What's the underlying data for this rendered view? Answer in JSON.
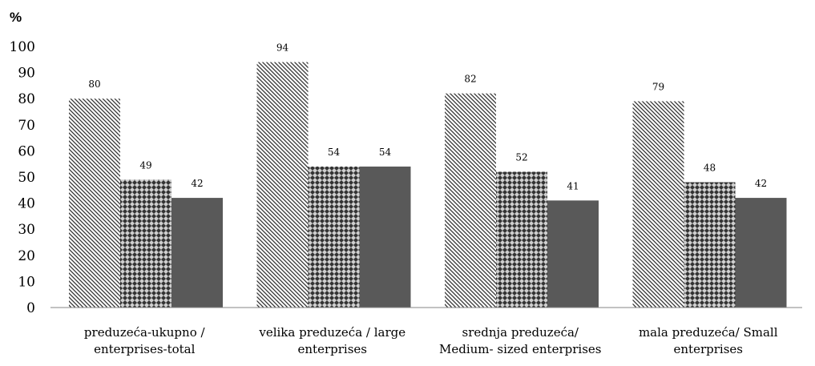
{
  "chart_data": {
    "type": "bar",
    "unit_label": "%",
    "title": "",
    "xlabel": "",
    "ylabel": "",
    "ylim": [
      0,
      100
    ],
    "yticks": [
      0,
      10,
      20,
      30,
      40,
      50,
      60,
      70,
      80,
      90,
      100
    ],
    "grid": false,
    "legend": "none",
    "categories": [
      [
        "preduzeća-ukupno /",
        "enterprises-total"
      ],
      [
        "velika preduzeća  / large",
        "enterprises"
      ],
      [
        "srednja  preduzeća/",
        "Medium- sized enterprises"
      ],
      [
        "mala preduzeća/  Small",
        "enterprises"
      ]
    ],
    "series": [
      {
        "pattern": "diagonal-stripes",
        "values": [
          80,
          94,
          82,
          79
        ]
      },
      {
        "pattern": "crosshatch",
        "values": [
          49,
          54,
          52,
          48
        ]
      },
      {
        "pattern": "solid",
        "color": "#595959",
        "values": [
          42,
          54,
          41,
          42
        ]
      }
    ]
  }
}
